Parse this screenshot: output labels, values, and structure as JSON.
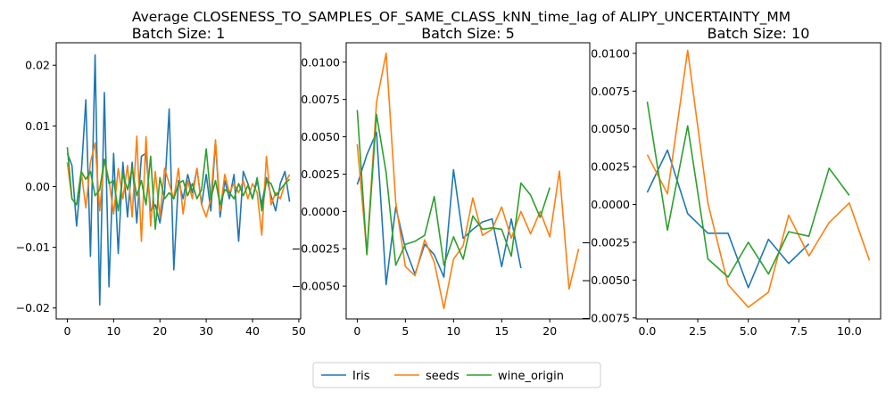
{
  "figure": {
    "title": "Average CLOSENESS_TO_SAMPLES_OF_SAME_CLASS_kNN_time_lag of ALIPY_UNCERTAINTY_MM"
  },
  "colors": {
    "Iris": "#1f77b4",
    "seeds": "#ff7f0e",
    "wine_origin": "#2ca02c"
  },
  "legend": {
    "placement": "bottom-center",
    "entries": [
      "Iris",
      "seeds",
      "wine_origin"
    ]
  },
  "chart_data": [
    {
      "type": "line",
      "title": "Batch Size: 1",
      "xlabel": "",
      "ylabel": "",
      "xlim": [
        -2.4,
        50.4
      ],
      "ylim": [
        -0.0218,
        0.0237
      ],
      "xticks": [
        0,
        10,
        20,
        30,
        40,
        50
      ],
      "xtick_labels": [
        "0",
        "10",
        "20",
        "30",
        "40",
        "50"
      ],
      "yticks": [
        -0.02,
        -0.01,
        0.0,
        0.01,
        0.02
      ],
      "ytick_labels": [
        "−0.02",
        "−0.01",
        "0.00",
        "0.01",
        "0.02"
      ],
      "grid": false,
      "series": [
        {
          "name": "Iris",
          "x": [
            0,
            1,
            2,
            3,
            4,
            5,
            6,
            7,
            8,
            9,
            10,
            11,
            12,
            13,
            14,
            15,
            16,
            17,
            18,
            19,
            20,
            21,
            22,
            23,
            24,
            25,
            26,
            27,
            28,
            29,
            30,
            31,
            32,
            33,
            34,
            35,
            36,
            37,
            38,
            39,
            40,
            41,
            42,
            43,
            44,
            45,
            46,
            47,
            48
          ],
          "values": [
            0.0055,
            0.0035,
            -0.0065,
            0.002,
            0.0143,
            -0.0115,
            0.0217,
            -0.0195,
            0.0155,
            -0.0165,
            0.0055,
            -0.011,
            0.004,
            -0.005,
            0.004,
            -0.006,
            0.005,
            0.0055,
            -0.004,
            -0.003,
            -0.006,
            -0.001,
            0.0128,
            -0.0137,
            0.001,
            -0.002,
            0.002,
            -0.001,
            0.003,
            -0.003,
            0.002,
            -0.004,
            0.0075,
            -0.005,
            0.001,
            -0.002,
            0.002,
            -0.009,
            0.0025,
            0.0005,
            -0.002,
            0.001,
            -0.003,
            0.0015,
            -0.0015,
            -0.004,
            0.0005,
            0.0025,
            -0.0025
          ]
        },
        {
          "name": "seeds",
          "x": [
            0,
            1,
            2,
            3,
            4,
            5,
            6,
            7,
            8,
            9,
            10,
            11,
            12,
            13,
            14,
            15,
            16,
            17,
            18,
            19,
            20,
            21,
            22,
            23,
            24,
            25,
            26,
            27,
            28,
            29,
            30,
            31,
            32,
            33,
            34,
            35,
            36,
            37,
            38,
            39,
            40,
            41,
            42,
            43,
            44,
            45,
            46,
            47,
            48
          ],
          "values": [
            0.004,
            -0.002,
            -0.003,
            0.0025,
            -0.0035,
            0.004,
            0.0072,
            -0.004,
            0.0045,
            0.001,
            -0.0045,
            0.003,
            -0.002,
            0.0035,
            -0.005,
            0.0083,
            -0.009,
            0.0082,
            -0.0065,
            0.0025,
            -0.005,
            0.003,
            0.0005,
            -0.002,
            0.003,
            -0.0045,
            0.001,
            -0.002,
            0.003,
            -0.003,
            -0.005,
            -0.002,
            0.0077,
            -0.004,
            0.002,
            -0.001,
            0.0005,
            -0.001,
            0.001,
            -0.002,
            0.0005,
            -0.001,
            -0.008,
            0.005,
            -0.003,
            -0.001,
            -0.002,
            0.0005,
            0.002
          ]
        },
        {
          "name": "wine_origin",
          "x": [
            0,
            1,
            2,
            3,
            4,
            5,
            6,
            7,
            8,
            9,
            10,
            11,
            12,
            13,
            14,
            15,
            16,
            17,
            18,
            19,
            20,
            21,
            22,
            23,
            24,
            25,
            26,
            27,
            28,
            29,
            30,
            31,
            32,
            33,
            34,
            35,
            36,
            37,
            38,
            39,
            40,
            41,
            42,
            43,
            44,
            45,
            46,
            47,
            48
          ],
          "values": [
            0.0065,
            -0.002,
            -0.003,
            0.0025,
            0.0012,
            0.0025,
            -0.0015,
            -0.0005,
            0.0045,
            0.0005,
            0.001,
            -0.004,
            0.002,
            -0.0005,
            0.003,
            -0.0015,
            0.001,
            -0.003,
            0.005,
            -0.007,
            0.0015,
            -0.002,
            -0.001,
            -0.002,
            0.0005,
            0.001,
            -0.0015,
            0.0005,
            -0.002,
            -0.0005,
            0.0062,
            -0.002,
            0.001,
            -0.003,
            -0.0005,
            -0.001,
            -0.002,
            0.0005,
            -0.0015,
            0.0002,
            -0.002,
            0.0015,
            -0.004,
            0.001,
            0.0005,
            -0.0015,
            -0.0005,
            0.0005,
            0.0012
          ]
        }
      ]
    },
    {
      "type": "line",
      "title": "Batch Size: 5",
      "xlabel": "",
      "ylabel": "",
      "xlim": [
        -1.15,
        24.15
      ],
      "ylim": [
        -0.0072,
        0.0113
      ],
      "xticks": [
        0,
        5,
        10,
        15,
        20
      ],
      "xtick_labels": [
        "0",
        "5",
        "10",
        "15",
        "20"
      ],
      "yticks": [
        -0.005,
        -0.0025,
        0.0,
        0.0025,
        0.005,
        0.0075,
        0.01
      ],
      "ytick_labels": [
        "−0.0050",
        "−0.0025",
        "0.0000",
        "0.0025",
        "0.0050",
        "0.0075",
        "0.0100"
      ],
      "grid": false,
      "series": [
        {
          "name": "Iris",
          "x": [
            0,
            1,
            2,
            3,
            4,
            5,
            6,
            7,
            8,
            9,
            10,
            11,
            12,
            13,
            14,
            15,
            16,
            17
          ],
          "values": [
            0.0018,
            0.0038,
            0.0053,
            -0.0049,
            0.0003,
            -0.0025,
            -0.0042,
            -0.0022,
            -0.0029,
            -0.0044,
            0.0028,
            -0.0018,
            -0.0012,
            -0.0007,
            -0.0005,
            -0.0037,
            -0.0005,
            -0.0038
          ]
        },
        {
          "name": "seeds",
          "x": [
            0,
            1,
            2,
            3,
            4,
            5,
            6,
            7,
            8,
            9,
            10,
            11,
            12,
            13,
            14,
            15,
            16,
            17,
            18,
            19,
            20,
            21,
            22,
            23
          ],
          "values": [
            0.0045,
            -0.0028,
            0.0073,
            0.0106,
            0.0006,
            -0.0037,
            -0.0043,
            -0.0019,
            -0.0034,
            -0.0065,
            -0.0032,
            -0.0023,
            0.0009,
            -0.0016,
            -0.0012,
            0.0003,
            -0.0018,
            0.0,
            -0.0015,
            0.0,
            -0.0017,
            0.0027,
            -0.0052,
            -0.0025
          ]
        },
        {
          "name": "wine_origin",
          "x": [
            0,
            1,
            2,
            3,
            4,
            5,
            6,
            7,
            8,
            9,
            10,
            11,
            12,
            13,
            14,
            15,
            16,
            17,
            18,
            19,
            20
          ],
          "values": [
            0.0068,
            -0.0029,
            0.0065,
            0.0026,
            -0.0036,
            -0.0022,
            -0.002,
            -0.0016,
            0.001,
            -0.0036,
            -0.0017,
            -0.0032,
            -0.0003,
            -0.0012,
            -0.0011,
            -0.0012,
            -0.003,
            0.0019,
            0.0011,
            -0.0004,
            0.0016
          ]
        }
      ]
    },
    {
      "type": "line",
      "title": "Batch Size: 10",
      "xlabel": "",
      "ylabel": "",
      "xlim": [
        -0.55,
        11.55
      ],
      "ylim": [
        -0.00757,
        0.0107
      ],
      "xticks": [
        0,
        2.5,
        5,
        7.5,
        10
      ],
      "xtick_labels": [
        "0.0",
        "2.5",
        "5.0",
        "7.5",
        "10.0"
      ],
      "yticks": [
        -0.0075,
        -0.005,
        -0.0025,
        0.0,
        0.0025,
        0.005,
        0.0075,
        0.01
      ],
      "ytick_labels": [
        "−0.0075",
        "−0.0050",
        "−0.0025",
        "0.0000",
        "0.0025",
        "0.0050",
        "0.0075",
        "0.0100"
      ],
      "grid": false,
      "series": [
        {
          "name": "Iris",
          "x": [
            0,
            1,
            2,
            3,
            4,
            5,
            6,
            7,
            8
          ],
          "values": [
            0.0008,
            0.0036,
            -0.0006,
            -0.0019,
            -0.0019,
            -0.0055,
            -0.0023,
            -0.0039,
            -0.0026
          ]
        },
        {
          "name": "seeds",
          "x": [
            0,
            1,
            2,
            3,
            4,
            5,
            6,
            7,
            8,
            9,
            10,
            11
          ],
          "values": [
            0.0033,
            0.0007,
            0.0102,
            0.0001,
            -0.0053,
            -0.0068,
            -0.0058,
            -0.0007,
            -0.0034,
            -0.0012,
            0.0001,
            -0.0037
          ]
        },
        {
          "name": "wine_origin",
          "x": [
            0,
            1,
            2,
            3,
            4,
            5,
            6,
            7,
            8,
            9,
            10
          ],
          "values": [
            0.0068,
            -0.0017,
            0.0052,
            -0.0036,
            -0.0048,
            -0.0025,
            -0.0046,
            -0.0018,
            -0.0021,
            0.0024,
            0.0006
          ]
        }
      ]
    }
  ]
}
